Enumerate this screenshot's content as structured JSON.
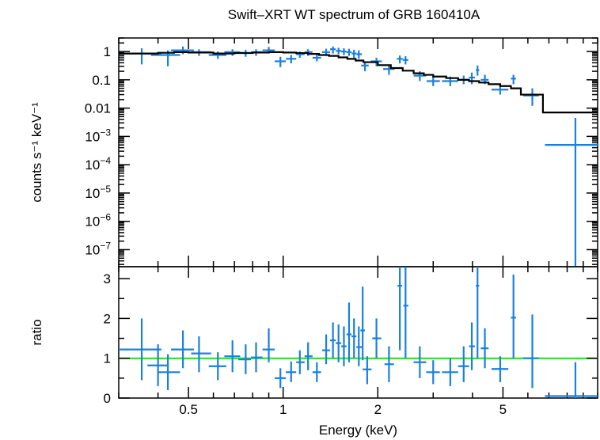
{
  "title": "Swift–XRT WT spectrum of GRB 160410A",
  "colors": {
    "data": "#1a7fe0",
    "model": "#000000",
    "ratio_line": "#22dd22",
    "axes": "#000000"
  },
  "chart_data": [
    {
      "type": "scatter",
      "name": "spectrum",
      "ylabel": "counts s⁻¹ keV⁻¹",
      "xscale": "log",
      "yscale": "log",
      "xlim": [
        0.3,
        10
      ],
      "ylim": [
        2.5e-08,
        3
      ],
      "yticks": [
        {
          "v": 1,
          "label": "1"
        },
        {
          "v": 0.1,
          "label": "0.1"
        },
        {
          "v": 0.01,
          "label": "0.01"
        },
        {
          "v": 0.001,
          "base": "10",
          "exp": "−3"
        },
        {
          "v": 0.0001,
          "base": "10",
          "exp": "−4"
        },
        {
          "v": 1e-05,
          "base": "10",
          "exp": "−5"
        },
        {
          "v": 1e-06,
          "base": "10",
          "exp": "−6"
        },
        {
          "v": 1e-07,
          "base": "10",
          "exp": "−7"
        }
      ],
      "points": [
        {
          "x": 0.355,
          "xlo": 0.3,
          "xhi": 0.41,
          "y": 0.85,
          "ylo": 0.35,
          "yhi": 1.3
        },
        {
          "x": 0.43,
          "xlo": 0.38,
          "xhi": 0.47,
          "y": 0.75,
          "ylo": 0.3,
          "yhi": 1.1
        },
        {
          "x": 0.48,
          "xlo": 0.44,
          "xhi": 0.52,
          "y": 1.1,
          "ylo": 0.8,
          "yhi": 1.5
        },
        {
          "x": 0.54,
          "xlo": 0.51,
          "xhi": 0.59,
          "y": 0.95,
          "ylo": 0.7,
          "yhi": 1.2
        },
        {
          "x": 0.62,
          "xlo": 0.58,
          "xhi": 0.66,
          "y": 0.75,
          "ylo": 0.55,
          "yhi": 1.0
        },
        {
          "x": 0.69,
          "xlo": 0.65,
          "xhi": 0.73,
          "y": 0.95,
          "ylo": 0.7,
          "yhi": 1.2
        },
        {
          "x": 0.76,
          "xlo": 0.72,
          "xhi": 0.79,
          "y": 0.9,
          "ylo": 0.65,
          "yhi": 1.15
        },
        {
          "x": 0.82,
          "xlo": 0.79,
          "xhi": 0.86,
          "y": 0.95,
          "ylo": 0.7,
          "yhi": 1.2
        },
        {
          "x": 0.9,
          "xlo": 0.86,
          "xhi": 0.94,
          "y": 1.1,
          "ylo": 0.85,
          "yhi": 1.45
        },
        {
          "x": 0.98,
          "xlo": 0.94,
          "xhi": 1.02,
          "y": 0.45,
          "ylo": 0.28,
          "yhi": 0.65
        },
        {
          "x": 1.06,
          "xlo": 1.02,
          "xhi": 1.1,
          "y": 0.55,
          "ylo": 0.38,
          "yhi": 0.75
        },
        {
          "x": 1.13,
          "xlo": 1.1,
          "xhi": 1.17,
          "y": 0.8,
          "ylo": 0.6,
          "yhi": 1.0
        },
        {
          "x": 1.2,
          "xlo": 1.17,
          "xhi": 1.24,
          "y": 0.95,
          "ylo": 0.7,
          "yhi": 1.2
        },
        {
          "x": 1.28,
          "xlo": 1.24,
          "xhi": 1.32,
          "y": 0.6,
          "ylo": 0.45,
          "yhi": 0.8
        },
        {
          "x": 1.37,
          "xlo": 1.33,
          "xhi": 1.41,
          "y": 0.95,
          "ylo": 0.7,
          "yhi": 1.25
        },
        {
          "x": 1.44,
          "xlo": 1.41,
          "xhi": 1.47,
          "y": 1.2,
          "ylo": 0.85,
          "yhi": 1.5
        },
        {
          "x": 1.5,
          "xlo": 1.47,
          "xhi": 1.53,
          "y": 1.05,
          "ylo": 0.8,
          "yhi": 1.35
        },
        {
          "x": 1.56,
          "xlo": 1.53,
          "xhi": 1.59,
          "y": 1.0,
          "ylo": 0.75,
          "yhi": 1.3
        },
        {
          "x": 1.62,
          "xlo": 1.59,
          "xhi": 1.65,
          "y": 0.95,
          "ylo": 0.7,
          "yhi": 1.25
        },
        {
          "x": 1.68,
          "xlo": 1.65,
          "xhi": 1.71,
          "y": 0.85,
          "ylo": 0.6,
          "yhi": 1.15
        },
        {
          "x": 1.74,
          "xlo": 1.71,
          "xhi": 1.78,
          "y": 0.8,
          "ylo": 0.55,
          "yhi": 1.1
        },
        {
          "x": 1.82,
          "xlo": 1.77,
          "xhi": 1.87,
          "y": 0.32,
          "ylo": 0.2,
          "yhi": 0.45
        },
        {
          "x": 1.98,
          "xlo": 1.9,
          "xhi": 2.06,
          "y": 0.45,
          "ylo": 0.3,
          "yhi": 0.6
        },
        {
          "x": 2.17,
          "xlo": 2.08,
          "xhi": 2.26,
          "y": 0.24,
          "ylo": 0.15,
          "yhi": 0.32
        },
        {
          "x": 2.35,
          "xlo": 2.3,
          "xhi": 2.4,
          "y": 0.55,
          "ylo": 0.38,
          "yhi": 0.72
        },
        {
          "x": 2.45,
          "xlo": 2.4,
          "xhi": 2.5,
          "y": 0.5,
          "ylo": 0.35,
          "yhi": 0.68
        },
        {
          "x": 2.72,
          "xlo": 2.6,
          "xhi": 2.85,
          "y": 0.14,
          "ylo": 0.09,
          "yhi": 0.2
        },
        {
          "x": 3.0,
          "xlo": 2.86,
          "xhi": 3.15,
          "y": 0.09,
          "ylo": 0.06,
          "yhi": 0.13
        },
        {
          "x": 3.4,
          "xlo": 3.2,
          "xhi": 3.6,
          "y": 0.09,
          "ylo": 0.06,
          "yhi": 0.13
        },
        {
          "x": 3.75,
          "xlo": 3.6,
          "xhi": 3.9,
          "y": 0.1,
          "ylo": 0.07,
          "yhi": 0.14
        },
        {
          "x": 3.98,
          "xlo": 3.9,
          "xhi": 4.07,
          "y": 0.12,
          "ylo": 0.07,
          "yhi": 0.18
        },
        {
          "x": 4.15,
          "xlo": 4.1,
          "xhi": 4.2,
          "y": 0.22,
          "ylo": 0.14,
          "yhi": 0.32
        },
        {
          "x": 4.38,
          "xlo": 4.25,
          "xhi": 4.5,
          "y": 0.1,
          "ylo": 0.07,
          "yhi": 0.15
        },
        {
          "x": 4.9,
          "xlo": 4.6,
          "xhi": 5.2,
          "y": 0.045,
          "ylo": 0.03,
          "yhi": 0.065
        },
        {
          "x": 5.4,
          "xlo": 5.3,
          "xhi": 5.5,
          "y": 0.11,
          "ylo": 0.07,
          "yhi": 0.15
        },
        {
          "x": 6.2,
          "xlo": 5.8,
          "xhi": 6.5,
          "y": 0.028,
          "ylo": 0.012,
          "yhi": 0.05
        },
        {
          "x": 8.5,
          "xlo": 6.8,
          "xhi": 10.0,
          "y": 0.0005,
          "ylo": 2.5e-08,
          "yhi": 0.0045
        }
      ],
      "model": {
        "x": [
          0.3,
          0.4,
          0.45,
          0.5,
          0.6,
          0.7,
          0.8,
          0.9,
          1.0,
          1.1,
          1.2,
          1.3,
          1.4,
          1.5,
          1.6,
          1.7,
          1.8,
          2.0,
          2.2,
          2.4,
          2.6,
          2.8,
          3.0,
          3.3,
          3.6,
          3.9,
          4.2,
          4.5,
          4.9,
          5.3,
          5.7,
          6.7,
          10.0
        ],
        "y": [
          0.85,
          0.9,
          0.95,
          0.92,
          0.85,
          0.88,
          0.92,
          0.95,
          0.92,
          0.88,
          0.82,
          0.75,
          0.7,
          0.62,
          0.55,
          0.48,
          0.42,
          0.33,
          0.26,
          0.21,
          0.17,
          0.15,
          0.13,
          0.115,
          0.1,
          0.09,
          0.08,
          0.07,
          0.06,
          0.05,
          0.03,
          0.007,
          0.007
        ]
      }
    },
    {
      "type": "scatter",
      "name": "ratio",
      "xlabel": "Energy (keV)",
      "ylabel": "ratio",
      "xscale": "log",
      "xlim": [
        0.3,
        10
      ],
      "ylim": [
        0,
        3.3
      ],
      "xticks": [
        {
          "v": 0.5,
          "label": "0.5"
        },
        {
          "v": 1,
          "label": "1"
        },
        {
          "v": 2,
          "label": "2"
        },
        {
          "v": 5,
          "label": "5"
        }
      ],
      "yticks": [
        {
          "v": 0,
          "label": "0"
        },
        {
          "v": 1,
          "label": "1"
        },
        {
          "v": 2,
          "label": "2"
        },
        {
          "v": 3,
          "label": "3"
        }
      ],
      "reference_line": 1,
      "points": [
        {
          "x": 0.355,
          "xlo": 0.3,
          "xhi": 0.41,
          "y": 1.22,
          "ylo": 0.45,
          "yhi": 2.0
        },
        {
          "x": 0.4,
          "xlo": 0.37,
          "xhi": 0.43,
          "y": 0.82,
          "ylo": 0.3,
          "yhi": 1.35
        },
        {
          "x": 0.43,
          "xlo": 0.4,
          "xhi": 0.47,
          "y": 0.65,
          "ylo": 0.2,
          "yhi": 1.1
        },
        {
          "x": 0.48,
          "xlo": 0.44,
          "xhi": 0.52,
          "y": 1.22,
          "ylo": 0.75,
          "yhi": 1.7
        },
        {
          "x": 0.54,
          "xlo": 0.51,
          "xhi": 0.59,
          "y": 1.12,
          "ylo": 0.65,
          "yhi": 1.55
        },
        {
          "x": 0.62,
          "xlo": 0.58,
          "xhi": 0.66,
          "y": 0.8,
          "ylo": 0.45,
          "yhi": 1.15
        },
        {
          "x": 0.69,
          "xlo": 0.65,
          "xhi": 0.73,
          "y": 1.05,
          "ylo": 0.65,
          "yhi": 1.45
        },
        {
          "x": 0.76,
          "xlo": 0.72,
          "xhi": 0.79,
          "y": 0.97,
          "ylo": 0.6,
          "yhi": 1.35
        },
        {
          "x": 0.82,
          "xlo": 0.79,
          "xhi": 0.86,
          "y": 1.02,
          "ylo": 0.65,
          "yhi": 1.4
        },
        {
          "x": 0.9,
          "xlo": 0.86,
          "xhi": 0.94,
          "y": 1.22,
          "ylo": 0.9,
          "yhi": 1.75
        },
        {
          "x": 0.98,
          "xlo": 0.94,
          "xhi": 1.02,
          "y": 0.5,
          "ylo": 0.25,
          "yhi": 0.75
        },
        {
          "x": 1.06,
          "xlo": 1.02,
          "xhi": 1.1,
          "y": 0.65,
          "ylo": 0.4,
          "yhi": 0.92
        },
        {
          "x": 1.13,
          "xlo": 1.1,
          "xhi": 1.17,
          "y": 0.9,
          "ylo": 0.6,
          "yhi": 1.2
        },
        {
          "x": 1.2,
          "xlo": 1.17,
          "xhi": 1.24,
          "y": 1.05,
          "ylo": 0.7,
          "yhi": 1.4
        },
        {
          "x": 1.28,
          "xlo": 1.24,
          "xhi": 1.32,
          "y": 0.65,
          "ylo": 0.4,
          "yhi": 0.9
        },
        {
          "x": 1.37,
          "xlo": 1.33,
          "xhi": 1.41,
          "y": 1.2,
          "ylo": 0.85,
          "yhi": 1.6
        },
        {
          "x": 1.44,
          "xlo": 1.41,
          "xhi": 1.47,
          "y": 1.45,
          "ylo": 1.0,
          "yhi": 1.9
        },
        {
          "x": 1.5,
          "xlo": 1.47,
          "xhi": 1.53,
          "y": 1.38,
          "ylo": 0.9,
          "yhi": 1.85
        },
        {
          "x": 1.56,
          "xlo": 1.53,
          "xhi": 1.59,
          "y": 1.3,
          "ylo": 0.8,
          "yhi": 1.8
        },
        {
          "x": 1.62,
          "xlo": 1.59,
          "xhi": 1.65,
          "y": 1.6,
          "ylo": 0.9,
          "yhi": 2.4
        },
        {
          "x": 1.68,
          "xlo": 1.65,
          "xhi": 1.71,
          "y": 1.55,
          "ylo": 1.0,
          "yhi": 2.0
        },
        {
          "x": 1.74,
          "xlo": 1.71,
          "xhi": 1.78,
          "y": 1.28,
          "ylo": 0.8,
          "yhi": 1.8
        },
        {
          "x": 1.79,
          "xlo": 1.76,
          "xhi": 1.82,
          "y": 1.7,
          "ylo": 0.95,
          "yhi": 2.8
        },
        {
          "x": 1.85,
          "xlo": 1.79,
          "xhi": 1.91,
          "y": 0.72,
          "ylo": 0.35,
          "yhi": 1.05
        },
        {
          "x": 1.98,
          "xlo": 1.92,
          "xhi": 2.05,
          "y": 1.5,
          "ylo": 1.0,
          "yhi": 2.0
        },
        {
          "x": 2.17,
          "xlo": 2.1,
          "xhi": 2.25,
          "y": 0.85,
          "ylo": 0.4,
          "yhi": 1.3
        },
        {
          "x": 2.35,
          "xlo": 2.31,
          "xhi": 2.39,
          "y": 2.82,
          "ylo": 1.2,
          "yhi": 3.3
        },
        {
          "x": 2.45,
          "xlo": 2.41,
          "xhi": 2.5,
          "y": 2.32,
          "ylo": 1.0,
          "yhi": 3.3
        },
        {
          "x": 2.72,
          "xlo": 2.6,
          "xhi": 2.85,
          "y": 0.9,
          "ylo": 0.5,
          "yhi": 1.3
        },
        {
          "x": 3.0,
          "xlo": 2.85,
          "xhi": 3.15,
          "y": 0.65,
          "ylo": 0.35,
          "yhi": 0.95
        },
        {
          "x": 3.4,
          "xlo": 3.2,
          "xhi": 3.6,
          "y": 0.65,
          "ylo": 0.3,
          "yhi": 1.0
        },
        {
          "x": 3.75,
          "xlo": 3.6,
          "xhi": 3.9,
          "y": 0.8,
          "ylo": 0.4,
          "yhi": 1.3
        },
        {
          "x": 3.98,
          "xlo": 3.9,
          "xhi": 4.07,
          "y": 1.3,
          "ylo": 0.7,
          "yhi": 1.9
        },
        {
          "x": 4.15,
          "xlo": 4.1,
          "xhi": 4.2,
          "y": 2.82,
          "ylo": 1.0,
          "yhi": 3.3
        },
        {
          "x": 4.38,
          "xlo": 4.25,
          "xhi": 4.5,
          "y": 1.25,
          "ylo": 0.75,
          "yhi": 1.75
        },
        {
          "x": 4.9,
          "xlo": 4.6,
          "xhi": 5.2,
          "y": 0.73,
          "ylo": 0.4,
          "yhi": 1.05
        },
        {
          "x": 5.4,
          "xlo": 5.3,
          "xhi": 5.5,
          "y": 2.02,
          "ylo": 1.0,
          "yhi": 3.1
        },
        {
          "x": 6.2,
          "xlo": 5.8,
          "xhi": 6.5,
          "y": 1.0,
          "ylo": 0.25,
          "yhi": 2.1
        },
        {
          "x": 8.5,
          "xlo": 6.8,
          "xhi": 10.0,
          "y": 0.05,
          "ylo": 0.0,
          "yhi": 0.9
        }
      ]
    }
  ]
}
